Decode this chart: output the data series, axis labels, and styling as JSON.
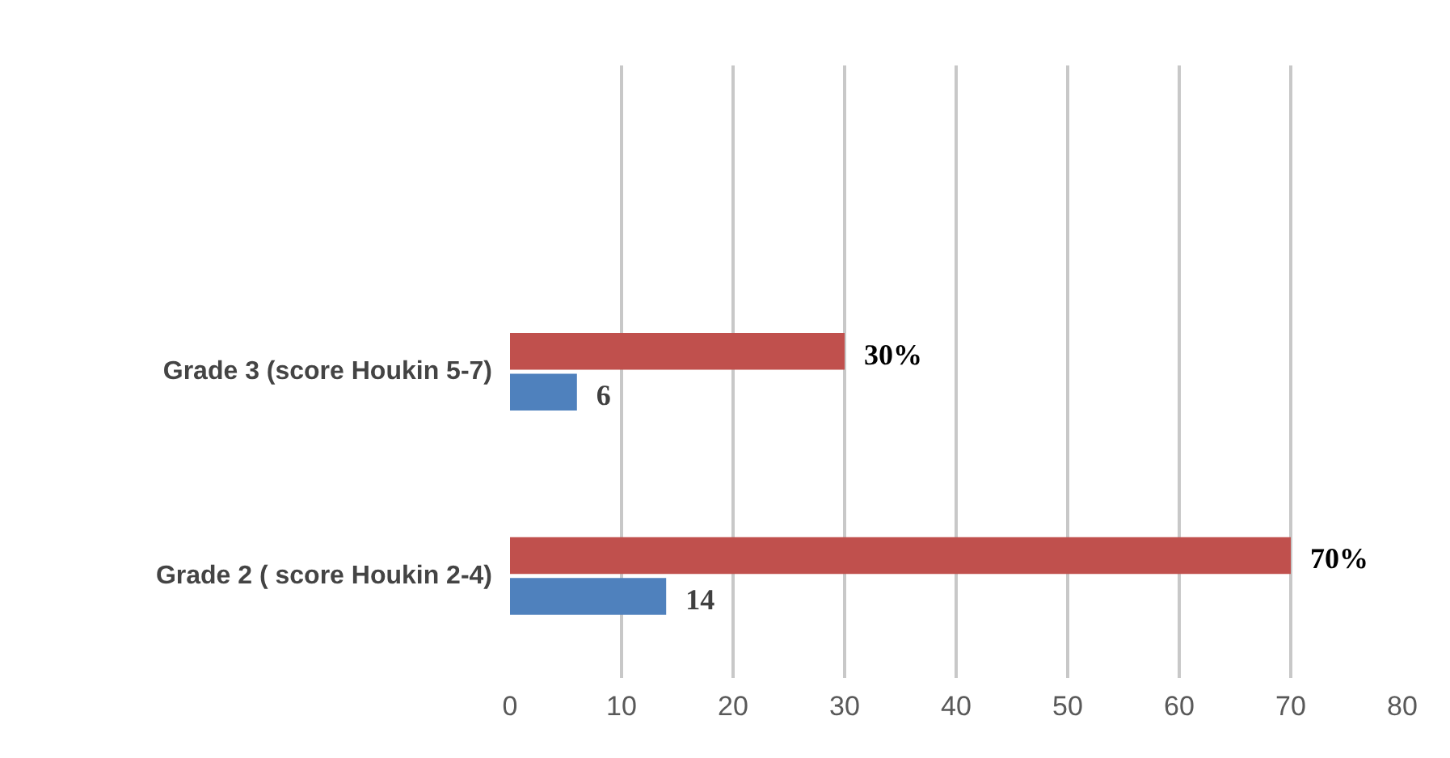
{
  "chart_data": {
    "type": "bar",
    "orientation": "horizontal",
    "categories": [
      "Grade 3 (score Houkin 5-7)",
      "Grade 2 ( score Houkin 2-4)"
    ],
    "series": [
      {
        "color": "#c0504d",
        "values": [
          30,
          70
        ],
        "value_labels": [
          "30%",
          "70%"
        ]
      },
      {
        "color": "#4f81bd",
        "values": [
          6,
          14
        ],
        "value_labels": [
          "6",
          "14"
        ]
      }
    ],
    "xlim": [
      0,
      80
    ],
    "xticks": [
      0,
      10,
      20,
      30,
      40,
      50,
      60,
      70,
      80
    ],
    "grid": "x"
  }
}
